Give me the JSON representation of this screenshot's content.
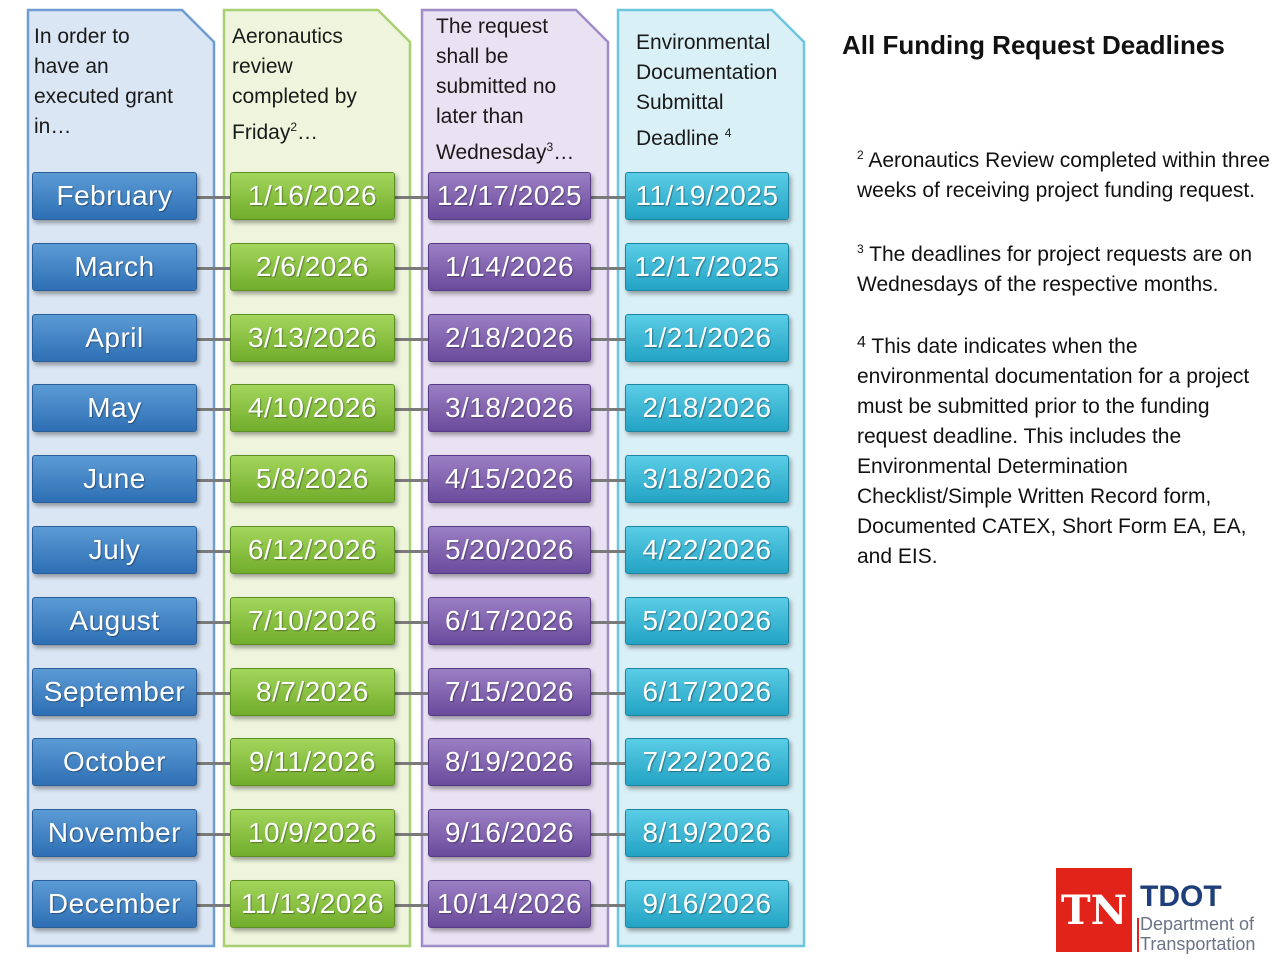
{
  "title": "All Funding Request Deadlines",
  "columns": [
    {
      "header": "In order to have an executed grant in…",
      "header_lines": [
        "In order to",
        "have an",
        "executed grant",
        "in…"
      ]
    },
    {
      "header": "Aeronautics review completed by Friday2…",
      "header_lines": [
        "Aeronautics",
        "review",
        "completed by",
        "Friday"
      ],
      "header_sup": "2",
      "header_tail": "…"
    },
    {
      "header": "The request shall be submitted no later than Wednesday3…",
      "header_lines": [
        "The request",
        "shall be",
        "submitted no",
        "later than",
        "Wednesday"
      ],
      "header_sup": "3",
      "header_tail": "…"
    },
    {
      "header": "Environmental Documentation Submittal Deadline 4",
      "header_lines": [
        "Environmental",
        "Documentation",
        "Submittal",
        "Deadline "
      ],
      "header_sup": "4",
      "header_tail": ""
    }
  ],
  "rows": [
    {
      "month": "February",
      "review": "1/16/2026",
      "request": "12/17/2025",
      "environmental": "11/19/2025"
    },
    {
      "month": "March",
      "review": "2/6/2026",
      "request": "1/14/2026",
      "environmental": "12/17/2025"
    },
    {
      "month": "April",
      "review": "3/13/2026",
      "request": "2/18/2026",
      "environmental": "1/21/2026"
    },
    {
      "month": "May",
      "review": "4/10/2026",
      "request": "3/18/2026",
      "environmental": "2/18/2026"
    },
    {
      "month": "June",
      "review": "5/8/2026",
      "request": "4/15/2026",
      "environmental": "3/18/2026"
    },
    {
      "month": "July",
      "review": "6/12/2026",
      "request": "5/20/2026",
      "environmental": "4/22/2026"
    },
    {
      "month": "August",
      "review": "7/10/2026",
      "request": "6/17/2026",
      "environmental": "5/20/2026"
    },
    {
      "month": "September",
      "review": "8/7/2026",
      "request": "7/15/2026",
      "environmental": "6/17/2026"
    },
    {
      "month": "October",
      "review": "9/11/2026",
      "request": "8/19/2026",
      "environmental": "7/22/2026"
    },
    {
      "month": "November",
      "review": "10/9/2026",
      "request": "9/16/2026",
      "environmental": "8/19/2026"
    },
    {
      "month": "December",
      "review": "11/13/2026",
      "request": "10/14/2026",
      "environmental": "9/16/2026"
    }
  ],
  "notes": [
    {
      "marker": "2",
      "text": "Aeronautics Review completed within three weeks of receiving project funding request."
    },
    {
      "marker": "3",
      "text": "The deadlines for project requests are on Wednesdays of the respective months."
    },
    {
      "marker": "4",
      "text": "This date indicates when the environmental documentation for a project must be submitted prior to the funding request deadline. This includes the Environmental Determination Checklist/Simple Written Record form, Documented CATEX, Short Form EA, EA, and EIS."
    }
  ],
  "logo": {
    "mark": "TN",
    "name": "TDOT",
    "subtitle_lines": [
      "Department of",
      "Transportation"
    ]
  },
  "colors": {
    "column_1": "#3a7ec6",
    "column_2": "#86bd3e",
    "column_3": "#7b5aad",
    "column_4": "#38b6d6",
    "logo_red": "#e2231a",
    "logo_navy": "#1f3f7a"
  }
}
